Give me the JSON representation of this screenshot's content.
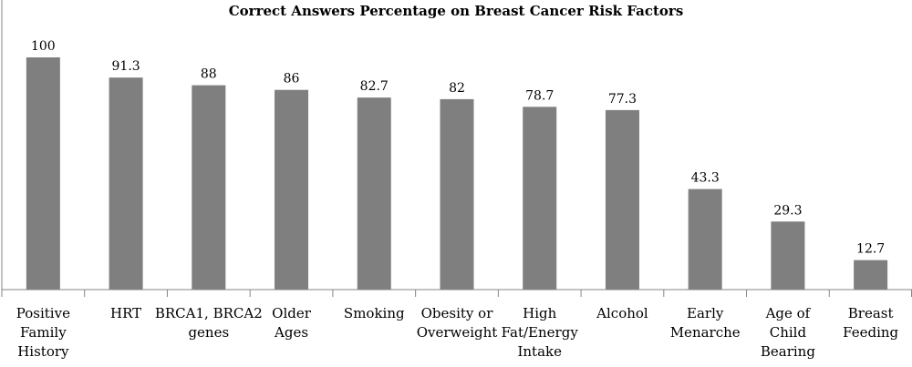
{
  "chart_data": {
    "type": "bar",
    "title": "Correct Answers Percentage on Breast Cancer Risk Factors",
    "xlabel": "",
    "ylabel": "",
    "categories": [
      "Positive Family History",
      "HRT",
      "BRCA1, BRCA2 genes",
      "Older Ages",
      "Smoking",
      "Obesity or Overweight",
      "High Fat/Energy Intake",
      "Alcohol",
      "Early Menarche",
      "Age of Child Bearing",
      "Breast Feeding"
    ],
    "category_lines": [
      [
        "Positive",
        "Family",
        "History"
      ],
      [
        "HRT"
      ],
      [
        "BRCA1, BRCA2",
        "genes"
      ],
      [
        "Older",
        "Ages"
      ],
      [
        "Smoking"
      ],
      [
        "Obesity or",
        "Overweight"
      ],
      [
        "High",
        "Fat/Energy",
        "Intake"
      ],
      [
        "Alcohol"
      ],
      [
        "Early",
        "Menarche"
      ],
      [
        "Age of",
        "Child",
        "Bearing"
      ],
      [
        "Breast",
        "Feeding"
      ]
    ],
    "values": [
      100,
      91.3,
      88,
      86,
      82.7,
      82,
      78.7,
      77.3,
      43.3,
      29.3,
      12.7
    ],
    "value_labels": [
      "100",
      "91.3",
      "88",
      "86",
      "82.7",
      "82",
      "78.7",
      "77.3",
      "43.3",
      "29.3",
      "12.7"
    ],
    "ylim": [
      0,
      100
    ],
    "grid": false,
    "legend": "none",
    "bar_color": "#7f7f7f",
    "axis_color": "#868686"
  }
}
